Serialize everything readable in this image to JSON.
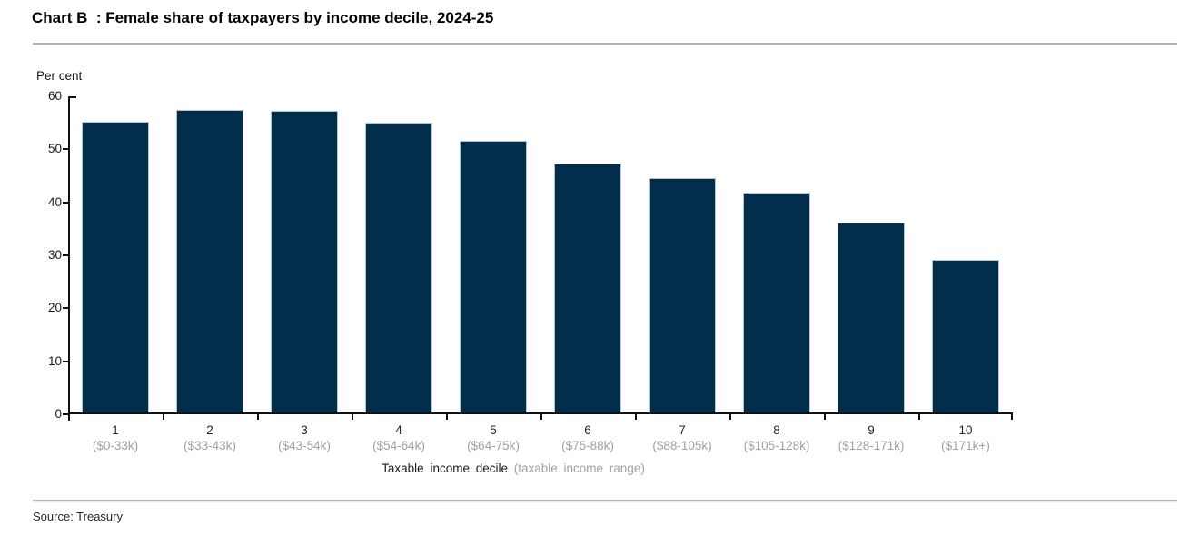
{
  "header": {
    "title": "Chart B  : Female share of taxpayers by income decile, 2024-25"
  },
  "chart_data": {
    "type": "bar",
    "title": "Chart B : Female share of taxpayers by income decile, 2024-25",
    "unit_label": "Per cent",
    "categories": [
      "1",
      "2",
      "3",
      "4",
      "5",
      "6",
      "7",
      "8",
      "9",
      "10"
    ],
    "category_ranges": [
      "($0-33k)",
      "($33-43k)",
      "($43-54k)",
      "($54-64k)",
      "($64-75k)",
      "($75-88k)",
      "($88-105k)",
      "($105-128k)",
      "($128-171k)",
      "($171k+)"
    ],
    "values": [
      55.2,
      57.5,
      57.2,
      55.1,
      51.6,
      47.3,
      44.6,
      41.8,
      36.2,
      29.2
    ],
    "xlabel": "Taxable income decile",
    "xlabel_secondary": "(taxable income range)",
    "ylabel": "Per cent",
    "ylim": [
      0,
      60
    ],
    "ytick_step": 10,
    "yticks": [
      0,
      10,
      20,
      30,
      40,
      50,
      60
    ],
    "grid": false,
    "legend": "none",
    "bar_color": "#022e4b",
    "axis_color": "#111111",
    "range_label_color": "#a0a0a0"
  },
  "footer": {
    "source": "Source: Treasury"
  }
}
